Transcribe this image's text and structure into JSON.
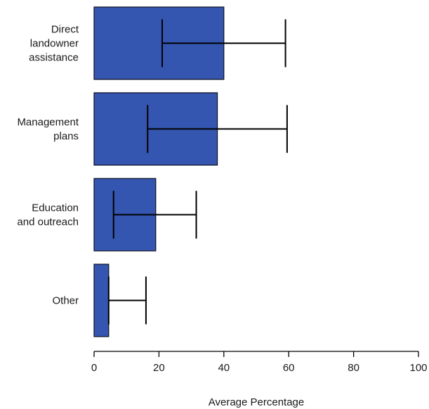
{
  "chart_data": {
    "type": "bar",
    "orientation": "horizontal",
    "categories": [
      [
        "Direct",
        "landowner",
        "assistance"
      ],
      [
        "Management",
        "plans"
      ],
      [
        "Education",
        "and outreach"
      ],
      [
        "Other"
      ]
    ],
    "values": [
      40,
      38,
      19,
      4.5
    ],
    "error_low": [
      21,
      16.5,
      6,
      4.5
    ],
    "error_high": [
      59,
      59.5,
      31.5,
      16
    ],
    "xlabel": "Average Percentage",
    "xlim": [
      0,
      100
    ],
    "xticks": [
      0,
      20,
      40,
      60,
      80,
      100
    ],
    "grid": false,
    "bar_color": "#3556b0",
    "bar_edge_color": "#0d1020",
    "error_bar_color": "#000000"
  }
}
